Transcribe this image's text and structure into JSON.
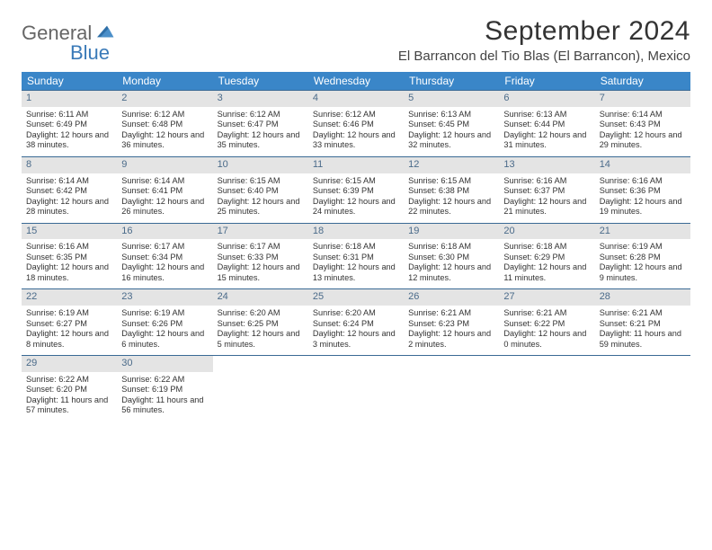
{
  "brand": {
    "line1": "General",
    "line2": "Blue"
  },
  "title": {
    "month": "September 2024",
    "location": "El Barrancon del Tio Blas (El Barrancon), Mexico"
  },
  "colors": {
    "header_bg": "#3a86c8",
    "daynum_bg": "#e4e4e4",
    "daynum_fg": "#4b6b8a",
    "rule": "#3a6a95",
    "logo_blue": "#3a7ab8"
  },
  "weekdays": [
    "Sunday",
    "Monday",
    "Tuesday",
    "Wednesday",
    "Thursday",
    "Friday",
    "Saturday"
  ],
  "weeks": [
    [
      {
        "n": "1",
        "sr": "6:11 AM",
        "ss": "6:49 PM",
        "dl": "12 hours and 38 minutes."
      },
      {
        "n": "2",
        "sr": "6:12 AM",
        "ss": "6:48 PM",
        "dl": "12 hours and 36 minutes."
      },
      {
        "n": "3",
        "sr": "6:12 AM",
        "ss": "6:47 PM",
        "dl": "12 hours and 35 minutes."
      },
      {
        "n": "4",
        "sr": "6:12 AM",
        "ss": "6:46 PM",
        "dl": "12 hours and 33 minutes."
      },
      {
        "n": "5",
        "sr": "6:13 AM",
        "ss": "6:45 PM",
        "dl": "12 hours and 32 minutes."
      },
      {
        "n": "6",
        "sr": "6:13 AM",
        "ss": "6:44 PM",
        "dl": "12 hours and 31 minutes."
      },
      {
        "n": "7",
        "sr": "6:14 AM",
        "ss": "6:43 PM",
        "dl": "12 hours and 29 minutes."
      }
    ],
    [
      {
        "n": "8",
        "sr": "6:14 AM",
        "ss": "6:42 PM",
        "dl": "12 hours and 28 minutes."
      },
      {
        "n": "9",
        "sr": "6:14 AM",
        "ss": "6:41 PM",
        "dl": "12 hours and 26 minutes."
      },
      {
        "n": "10",
        "sr": "6:15 AM",
        "ss": "6:40 PM",
        "dl": "12 hours and 25 minutes."
      },
      {
        "n": "11",
        "sr": "6:15 AM",
        "ss": "6:39 PM",
        "dl": "12 hours and 24 minutes."
      },
      {
        "n": "12",
        "sr": "6:15 AM",
        "ss": "6:38 PM",
        "dl": "12 hours and 22 minutes."
      },
      {
        "n": "13",
        "sr": "6:16 AM",
        "ss": "6:37 PM",
        "dl": "12 hours and 21 minutes."
      },
      {
        "n": "14",
        "sr": "6:16 AM",
        "ss": "6:36 PM",
        "dl": "12 hours and 19 minutes."
      }
    ],
    [
      {
        "n": "15",
        "sr": "6:16 AM",
        "ss": "6:35 PM",
        "dl": "12 hours and 18 minutes."
      },
      {
        "n": "16",
        "sr": "6:17 AM",
        "ss": "6:34 PM",
        "dl": "12 hours and 16 minutes."
      },
      {
        "n": "17",
        "sr": "6:17 AM",
        "ss": "6:33 PM",
        "dl": "12 hours and 15 minutes."
      },
      {
        "n": "18",
        "sr": "6:18 AM",
        "ss": "6:31 PM",
        "dl": "12 hours and 13 minutes."
      },
      {
        "n": "19",
        "sr": "6:18 AM",
        "ss": "6:30 PM",
        "dl": "12 hours and 12 minutes."
      },
      {
        "n": "20",
        "sr": "6:18 AM",
        "ss": "6:29 PM",
        "dl": "12 hours and 11 minutes."
      },
      {
        "n": "21",
        "sr": "6:19 AM",
        "ss": "6:28 PM",
        "dl": "12 hours and 9 minutes."
      }
    ],
    [
      {
        "n": "22",
        "sr": "6:19 AM",
        "ss": "6:27 PM",
        "dl": "12 hours and 8 minutes."
      },
      {
        "n": "23",
        "sr": "6:19 AM",
        "ss": "6:26 PM",
        "dl": "12 hours and 6 minutes."
      },
      {
        "n": "24",
        "sr": "6:20 AM",
        "ss": "6:25 PM",
        "dl": "12 hours and 5 minutes."
      },
      {
        "n": "25",
        "sr": "6:20 AM",
        "ss": "6:24 PM",
        "dl": "12 hours and 3 minutes."
      },
      {
        "n": "26",
        "sr": "6:21 AM",
        "ss": "6:23 PM",
        "dl": "12 hours and 2 minutes."
      },
      {
        "n": "27",
        "sr": "6:21 AM",
        "ss": "6:22 PM",
        "dl": "12 hours and 0 minutes."
      },
      {
        "n": "28",
        "sr": "6:21 AM",
        "ss": "6:21 PM",
        "dl": "11 hours and 59 minutes."
      }
    ],
    [
      {
        "n": "29",
        "sr": "6:22 AM",
        "ss": "6:20 PM",
        "dl": "11 hours and 57 minutes."
      },
      {
        "n": "30",
        "sr": "6:22 AM",
        "ss": "6:19 PM",
        "dl": "11 hours and 56 minutes."
      },
      null,
      null,
      null,
      null,
      null
    ]
  ],
  "labels": {
    "sunrise": "Sunrise: ",
    "sunset": "Sunset: ",
    "daylight": "Daylight: "
  }
}
